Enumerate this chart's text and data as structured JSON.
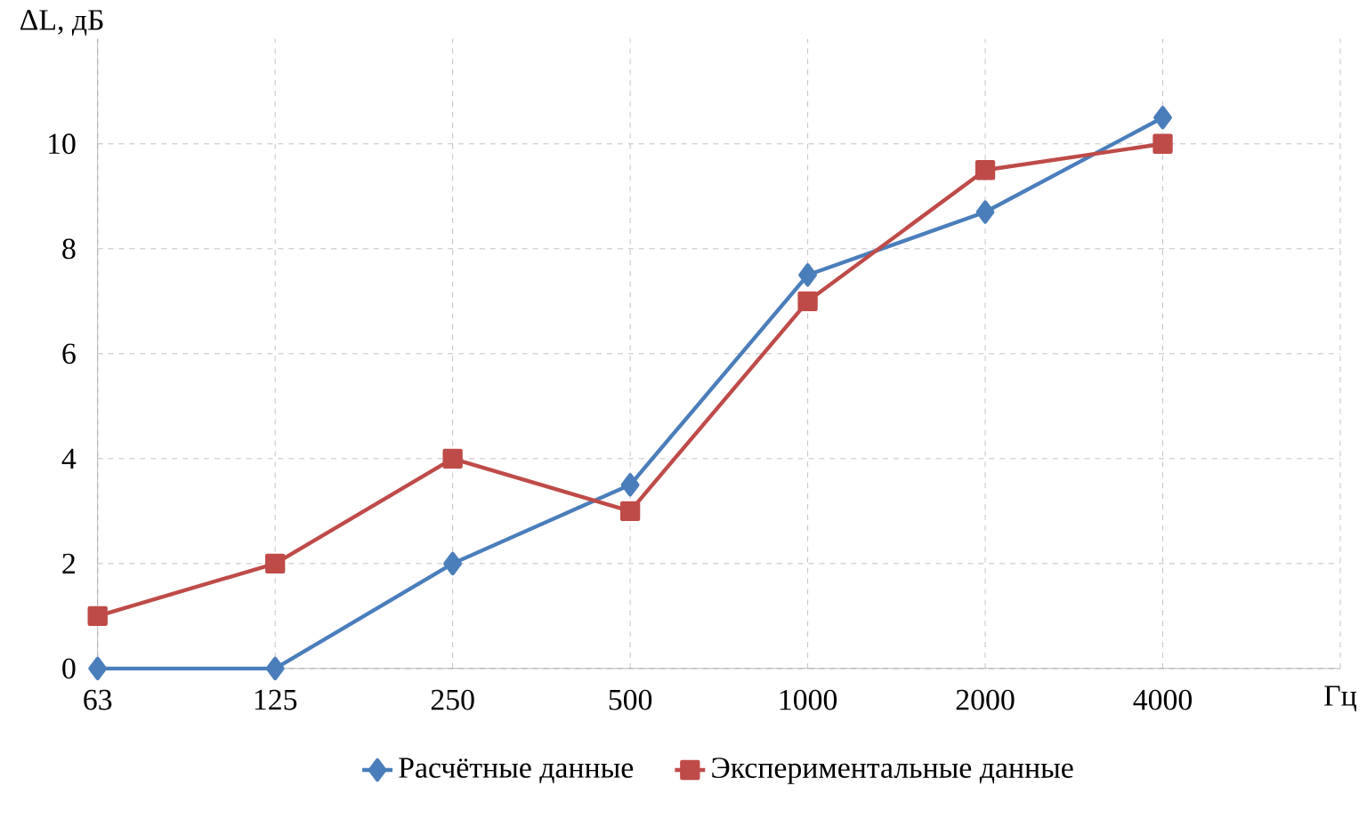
{
  "chart_data": {
    "type": "line",
    "ylabel": "ΔL, дБ",
    "xlabel": "Гц",
    "categories": [
      "63",
      "125",
      "250",
      "500",
      "1000",
      "2000",
      "4000"
    ],
    "series": [
      {
        "name": "Расчётные данные",
        "color": "#4a7ebb",
        "marker": "diamond",
        "values": [
          0,
          0,
          2,
          3.5,
          7.5,
          8.7,
          10.5
        ]
      },
      {
        "name": "Экспериментальные данные",
        "color": "#be4b48",
        "marker": "square",
        "values": [
          1,
          2,
          4,
          3,
          7,
          9.5,
          10
        ]
      }
    ],
    "ylim": [
      0,
      12
    ],
    "yticks": [
      0,
      2,
      4,
      6,
      8,
      10
    ],
    "grid": true,
    "legend": "bottom"
  }
}
